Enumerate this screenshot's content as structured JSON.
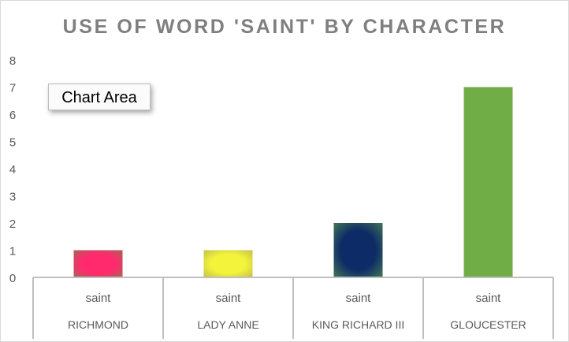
{
  "chart_data": {
    "type": "bar",
    "title": "USE OF WORD 'SAINT' BY CHARACTER",
    "xlabel": "",
    "ylabel": "",
    "ylim": [
      0,
      8
    ],
    "yticks": [
      0,
      1,
      2,
      3,
      4,
      5,
      6,
      7,
      8
    ],
    "grid": false,
    "legend": "none",
    "categories": [
      {
        "word": "saint",
        "character": "RICHMOND"
      },
      {
        "word": "saint",
        "character": "LADY ANNE"
      },
      {
        "word": "saint",
        "character": "KING RICHARD III"
      },
      {
        "word": "saint",
        "character": "GLOUCESTER"
      }
    ],
    "values": [
      1,
      1,
      2,
      7
    ],
    "bar_colors": [
      "#ff2a6d",
      "#f2f33a",
      "#0d2b66",
      "#70ad47"
    ],
    "bar_glow_colors": [
      "#b65a5a",
      "#c9c84a",
      "#3a6a5a",
      "#70ad47"
    ]
  },
  "tooltip": {
    "text": "Chart Area"
  },
  "colors": {
    "axis": "#bfbfbf",
    "text": "#595959",
    "title": "#7f7f7f"
  }
}
